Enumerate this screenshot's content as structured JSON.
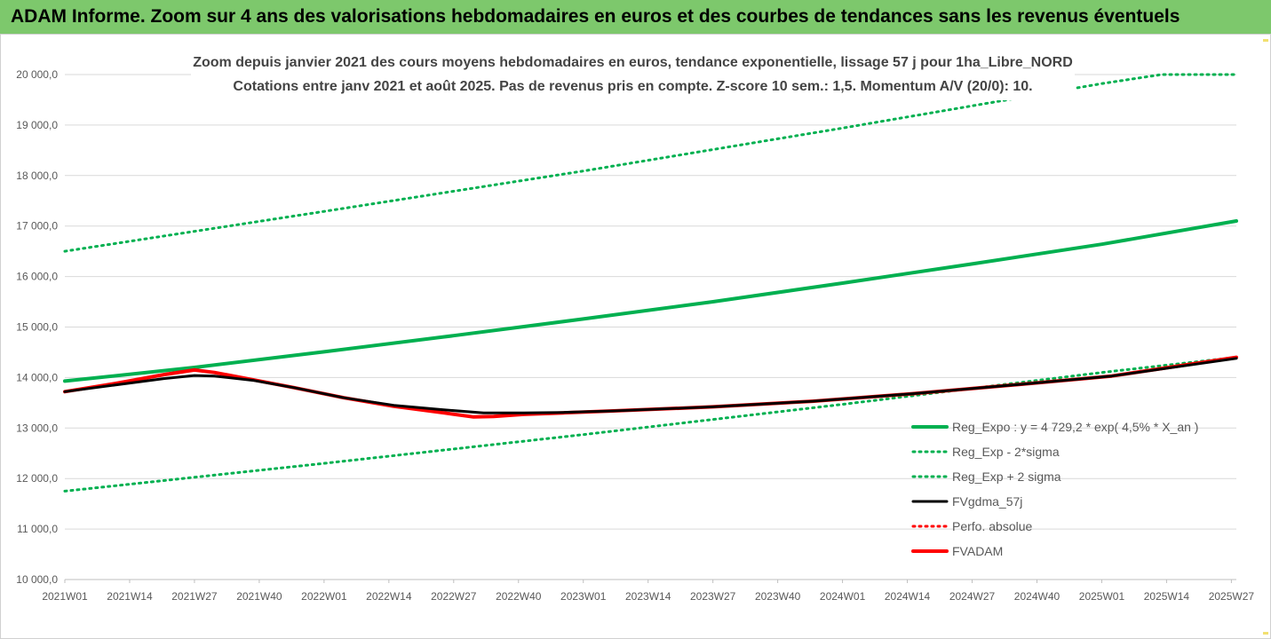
{
  "header": {
    "banner_title": "ADAM Informe. Zoom sur 4 ans des valorisations hebdomadaires en euros et des courbes de tendances sans les revenus éventuels"
  },
  "colors": {
    "banner_bg": "#7dc86c",
    "trend_green": "#00b050",
    "series_black": "#000000",
    "series_red": "#ff0000",
    "grid": "#d9d9d9",
    "axis_text": "#595959"
  },
  "chart_data": {
    "type": "line",
    "title": "Zoom depuis janvier 2021 des cours moyens hebdomadaires en euros, tendance exponentielle, lissage 57 j pour 1ha_Libre_NORD",
    "subtitle": "Cotations entre janv 2021 et août 2025. Pas de revenus pris en compte. Z-score 10 sem.: 1,5. Momentum A/V (20/0): 10.",
    "xlabel": "",
    "ylabel": "",
    "x_ticks": [
      "2021W01",
      "2021W14",
      "2021W27",
      "2021W40",
      "2022W01",
      "2022W14",
      "2022W27",
      "2022W40",
      "2023W01",
      "2023W14",
      "2023W27",
      "2023W40",
      "2024W01",
      "2024W14",
      "2024W27",
      "2024W40",
      "2025W01",
      "2025W14",
      "2025W27"
    ],
    "x_range_weeks": [
      0,
      235
    ],
    "y_ticks": [
      "10 000,0",
      "11 000,0",
      "12 000,0",
      "13 000,0",
      "14 000,0",
      "15 000,0",
      "16 000,0",
      "17 000,0",
      "18 000,0",
      "19 000,0",
      "20 000,0"
    ],
    "ylim": [
      10000,
      20000
    ],
    "grid": "horizontal",
    "legend_position": "bottom-right",
    "series": [
      {
        "name": "Reg_Expo : y = 4 729,2 * exp( 4,5% *  X_an )",
        "style": "solid-thick",
        "color": "#00b050",
        "points": [
          [
            0,
            13930
          ],
          [
            26,
            14200
          ],
          [
            52,
            14510
          ],
          [
            78,
            14830
          ],
          [
            104,
            15160
          ],
          [
            130,
            15500
          ],
          [
            156,
            15870
          ],
          [
            182,
            16250
          ],
          [
            208,
            16640
          ],
          [
            235,
            17100
          ]
        ]
      },
      {
        "name": "Reg_Exp - 2*sigma",
        "style": "dotted",
        "color": "#00b050",
        "points": [
          [
            0,
            11750
          ],
          [
            52,
            12300
          ],
          [
            104,
            12870
          ],
          [
            156,
            13470
          ],
          [
            208,
            14100
          ],
          [
            235,
            14400
          ]
        ]
      },
      {
        "name": "Reg_Exp + 2 sigma",
        "style": "dotted",
        "color": "#00b050",
        "points": [
          [
            0,
            16500
          ],
          [
            52,
            17290
          ],
          [
            104,
            18090
          ],
          [
            156,
            18940
          ],
          [
            208,
            19820
          ],
          [
            220,
            20000
          ],
          [
            235,
            20000
          ]
        ]
      },
      {
        "name": "FVgdma_57j",
        "style": "solid",
        "color": "#000000",
        "points": [
          [
            0,
            13720
          ],
          [
            10,
            13850
          ],
          [
            20,
            13980
          ],
          [
            26,
            14040
          ],
          [
            30,
            14030
          ],
          [
            38,
            13940
          ],
          [
            46,
            13800
          ],
          [
            56,
            13600
          ],
          [
            66,
            13450
          ],
          [
            76,
            13360
          ],
          [
            84,
            13300
          ],
          [
            92,
            13300
          ],
          [
            100,
            13310
          ],
          [
            110,
            13340
          ],
          [
            130,
            13420
          ],
          [
            150,
            13530
          ],
          [
            170,
            13680
          ],
          [
            190,
            13850
          ],
          [
            210,
            14030
          ],
          [
            235,
            14380
          ]
        ]
      },
      {
        "name": "Perfo. absolue",
        "style": "dotted",
        "color": "#ff0000",
        "points": [
          [
            0,
            13720
          ],
          [
            10,
            13880
          ],
          [
            20,
            14060
          ],
          [
            26,
            14150
          ],
          [
            30,
            14100
          ],
          [
            38,
            13950
          ],
          [
            46,
            13800
          ],
          [
            56,
            13600
          ],
          [
            66,
            13430
          ],
          [
            76,
            13300
          ],
          [
            82,
            13220
          ],
          [
            86,
            13230
          ],
          [
            92,
            13270
          ],
          [
            100,
            13300
          ],
          [
            110,
            13340
          ],
          [
            130,
            13420
          ],
          [
            150,
            13530
          ],
          [
            170,
            13680
          ],
          [
            190,
            13850
          ],
          [
            210,
            14030
          ],
          [
            235,
            14400
          ]
        ]
      },
      {
        "name": "FVADAM",
        "style": "solid-thick",
        "color": "#ff0000",
        "points": [
          [
            0,
            13720
          ],
          [
            10,
            13880
          ],
          [
            20,
            14060
          ],
          [
            26,
            14150
          ],
          [
            30,
            14100
          ],
          [
            38,
            13950
          ],
          [
            46,
            13800
          ],
          [
            56,
            13600
          ],
          [
            66,
            13430
          ],
          [
            76,
            13300
          ],
          [
            82,
            13220
          ],
          [
            86,
            13230
          ],
          [
            92,
            13270
          ],
          [
            100,
            13300
          ],
          [
            110,
            13340
          ],
          [
            130,
            13420
          ],
          [
            150,
            13530
          ],
          [
            170,
            13680
          ],
          [
            190,
            13850
          ],
          [
            210,
            14030
          ],
          [
            235,
            14400
          ]
        ]
      }
    ]
  }
}
